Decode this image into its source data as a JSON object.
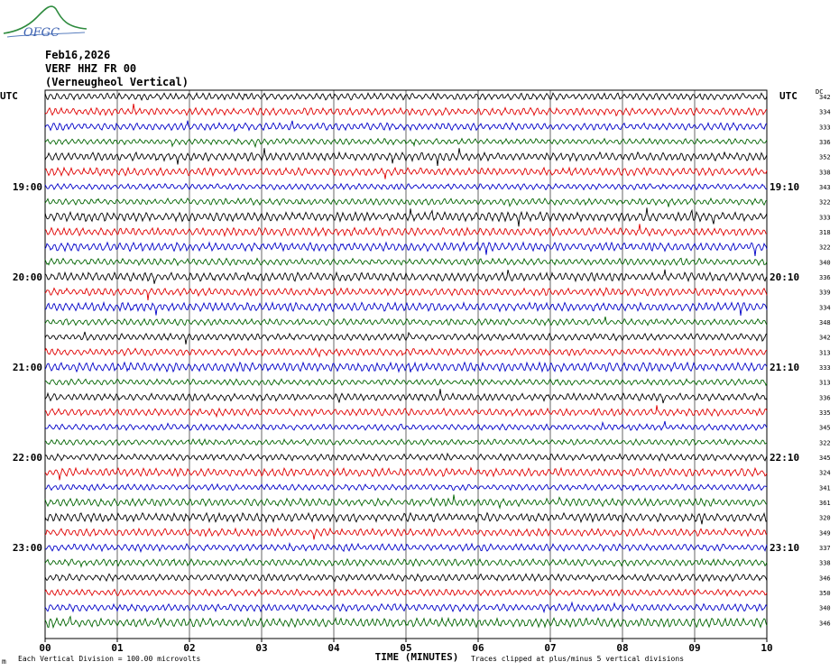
{
  "header": {
    "logo_text": "OFGC",
    "date": "Feb16,2026",
    "station": "VERF HHZ FR 00",
    "station_desc": "(Verneugheol Vertical)"
  },
  "left_axis_label": "UTC",
  "right_axis_label": "UTC",
  "right_column_label": "DC",
  "footer": {
    "left_mark": "m",
    "scale_note": "Each Vertical Division = 100.00 microvolts",
    "clip_note": "Traces clipped at plus/minus 5 vertical divisions"
  },
  "chart_data": {
    "type": "line",
    "xlabel": "TIME (MINUTES)",
    "x_ticks": [
      "00",
      "01",
      "02",
      "03",
      "04",
      "05",
      "06",
      "07",
      "08",
      "09",
      "10"
    ],
    "xlim": [
      0,
      10
    ],
    "row_minutes": 10,
    "trace_colors": [
      "#000000",
      "#e00000",
      "#0000c8",
      "#006400"
    ],
    "left_time_labels": [
      {
        "row": 6,
        "text": "19:00"
      },
      {
        "row": 12,
        "text": "20:00"
      },
      {
        "row": 18,
        "text": "21:00"
      },
      {
        "row": 24,
        "text": "22:00"
      },
      {
        "row": 30,
        "text": "23:00"
      }
    ],
    "right_time_labels": [
      {
        "row": 6,
        "text": "19:10"
      },
      {
        "row": 12,
        "text": "20:10"
      },
      {
        "row": 18,
        "text": "21:10"
      },
      {
        "row": 24,
        "text": "22:10"
      },
      {
        "row": 30,
        "text": "23:10"
      }
    ],
    "dc_offsets": [
      "342",
      "334",
      "333",
      "336",
      "352",
      "338",
      "343",
      "322",
      "333",
      "318",
      "322",
      "340",
      "336",
      "339",
      "334",
      "348",
      "342",
      "313",
      "333",
      "313",
      "336",
      "335",
      "345",
      "322",
      "345",
      "324",
      "341",
      "361",
      "320",
      "349",
      "337",
      "338",
      "346",
      "350",
      "340",
      "346"
    ]
  }
}
